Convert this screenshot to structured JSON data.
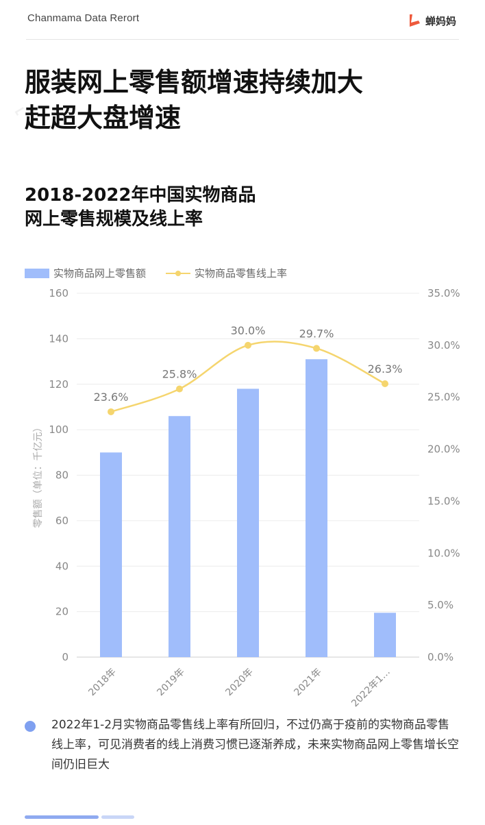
{
  "header": {
    "brand_text": "Chanmama Data Rerort",
    "logo_text": "蝉妈妈",
    "logo_icon": "chanmama-logo-icon",
    "accent_color": "#ee5a3c"
  },
  "title": {
    "line1": "服装网上零售额增速持续加大",
    "line2": "赶超大盘增速"
  },
  "chart_title": {
    "line1": "2018-2022年中国实物商品",
    "line2": "网上零售规模及线上率"
  },
  "chart_data": {
    "type": "bar",
    "categories": [
      "2018年",
      "2019年",
      "2020年",
      "2021年",
      "2022年1…"
    ],
    "series": [
      {
        "name": "实物商品网上零售额",
        "type": "bar",
        "axis": "left",
        "color": "#a0bdfb",
        "values": [
          90,
          106,
          118,
          131,
          19.5
        ]
      },
      {
        "name": "实物商品零售线上率",
        "type": "line",
        "axis": "right",
        "color": "#f5d56e",
        "values": [
          23.6,
          25.8,
          30.0,
          29.7,
          26.3
        ],
        "labels": [
          "23.6%",
          "25.8%",
          "30.0%",
          "29.7%",
          "26.3%"
        ]
      }
    ],
    "ylabel": "零售额（单位：千亿元）",
    "ylim": [
      0,
      160
    ],
    "yticks": [
      "0",
      "20",
      "40",
      "60",
      "80",
      "100",
      "120",
      "140",
      "160"
    ],
    "y2lim": [
      0,
      35
    ],
    "y2ticks": [
      "0.0%",
      "5.0%",
      "10.0%",
      "15.0%",
      "20.0%",
      "25.0%",
      "30.0%",
      "35.0%"
    ],
    "grid": true,
    "legend_position": "top-left"
  },
  "note": {
    "text": "2022年1-2月实物商品零售线上率有所回归，不过仍高于疫前的实物商品零售线上率，可见消费者的线上消费习惯已逐渐养成，未来实物商品网上零售增长空间仍旧巨大",
    "bullet_color": "#7fa0f0"
  },
  "pager": {
    "active_color": "#8faaf0",
    "inactive_color": "#c9d6f7"
  }
}
